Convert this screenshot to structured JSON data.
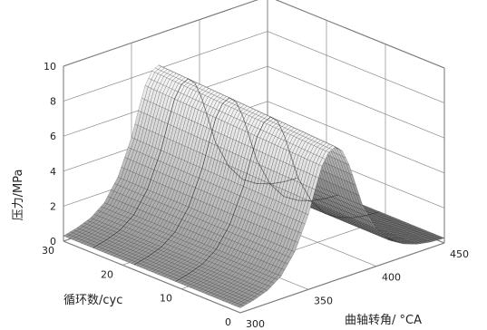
{
  "chart_data": {
    "type": "surface3d",
    "title": "",
    "zlabel": "压力/MPa",
    "ylabel": "循环数/cyc",
    "xlabel": "曲轴转角/ °CA",
    "z_range": [
      0,
      10
    ],
    "y_range": [
      0,
      30
    ],
    "x_range": [
      300,
      450
    ],
    "z_ticks": [
      "0",
      "2",
      "4",
      "6",
      "8",
      "10"
    ],
    "y_ticks": [
      "0",
      "10",
      "20",
      "30"
    ],
    "x_ticks": [
      "300",
      "350",
      "400",
      "450"
    ],
    "grid": true,
    "cycles": 30,
    "crank_angle": [
      300,
      310,
      320,
      330,
      340,
      350,
      355,
      360,
      365,
      370,
      375,
      380,
      385,
      390,
      400,
      410,
      420,
      430,
      440,
      450
    ],
    "pressure_profile": [
      0.3,
      0.5,
      0.8,
      1.4,
      2.6,
      4.6,
      6.0,
      7.3,
      8.0,
      8.2,
      7.8,
      6.8,
      5.4,
      4.0,
      2.3,
      1.3,
      0.8,
      0.5,
      0.35,
      0.3
    ]
  }
}
